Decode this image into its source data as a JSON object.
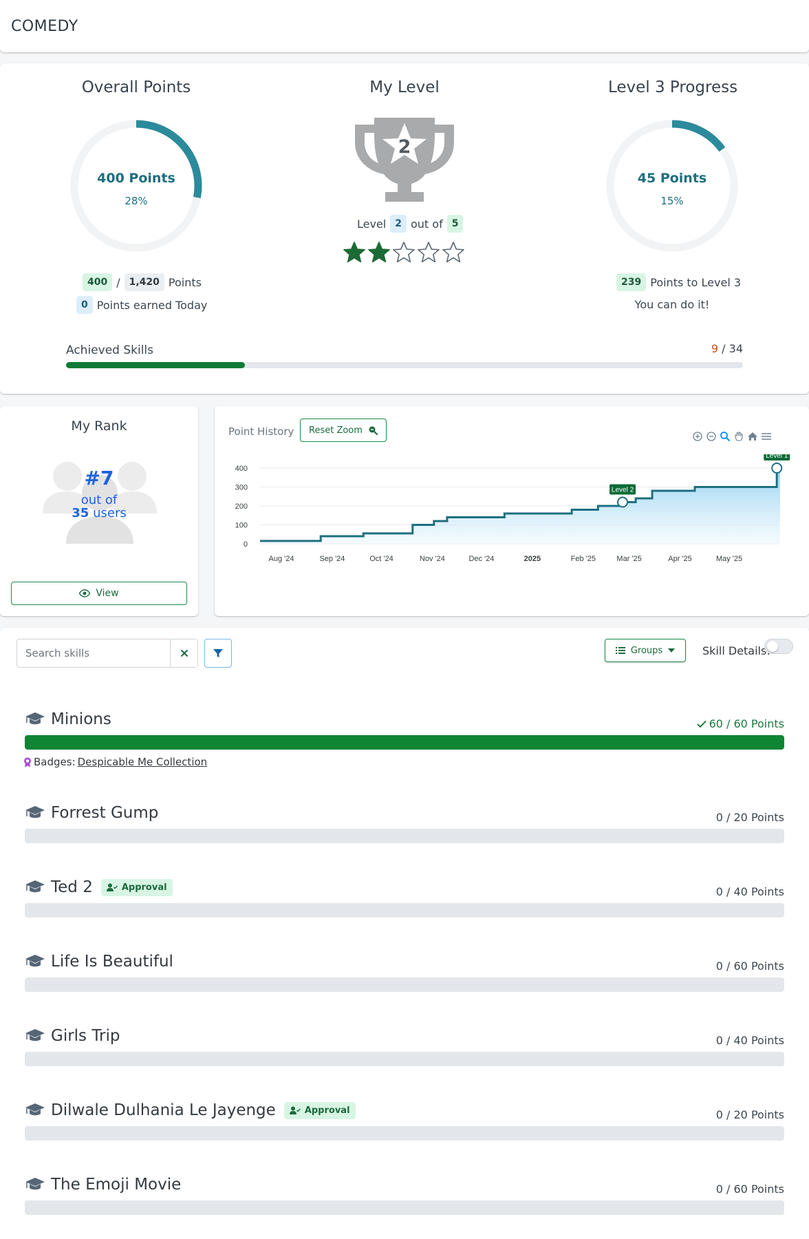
{
  "header": {
    "title": "COMEDY"
  },
  "overview": {
    "overall": {
      "title": "Overall Points",
      "points_label": "400 Points",
      "percent_label": "28%",
      "fraction": 0.28,
      "earned": "400",
      "total": "1,420",
      "points_word": "Points",
      "today": "0",
      "today_label": "Points earned Today",
      "separator": "/"
    },
    "level": {
      "title": "My Level",
      "current": "2",
      "level_word": "Level",
      "out_of_word": "out of",
      "max": "5",
      "stars_filled": 2,
      "stars_total": 5
    },
    "progress": {
      "title": "Level 3 Progress",
      "points_label": "45 Points",
      "percent_label": "15%",
      "fraction": 0.15,
      "remaining": "239",
      "remaining_label": "Points to Level 3",
      "encouragement": "You can do it!"
    },
    "achieved": {
      "label": "Achieved Skills",
      "done": "9",
      "total": "34",
      "separator": "/",
      "fraction": 0.2647
    }
  },
  "rank": {
    "title": "My Rank",
    "position": "#7",
    "out_of": "out of",
    "count": "35",
    "users_word": "users",
    "view_label": "View"
  },
  "history": {
    "title": "Point History",
    "reset_label": "Reset Zoom"
  },
  "chart_data": {
    "type": "area",
    "title": "Point History",
    "x_ticks": [
      "Aug '24",
      "Sep '24",
      "Oct '24",
      "Nov '24",
      "Dec '24",
      "2025",
      "Feb '25",
      "Mar '25",
      "Apr '25",
      "May '25"
    ],
    "y_ticks": [
      "0",
      "100",
      "200",
      "300",
      "400"
    ],
    "ylim": [
      0,
      400
    ],
    "series": [
      {
        "points": [
          [
            "2024-07-19",
            15
          ],
          [
            "2024-08-25",
            15
          ],
          [
            "2024-08-25",
            40
          ],
          [
            "2024-09-20",
            40
          ],
          [
            "2024-09-20",
            55
          ],
          [
            "2024-10-20",
            55
          ],
          [
            "2024-10-20",
            100
          ],
          [
            "2024-11-02",
            100
          ],
          [
            "2024-11-02",
            120
          ],
          [
            "2024-11-10",
            120
          ],
          [
            "2024-11-10",
            140
          ],
          [
            "2024-12-15",
            140
          ],
          [
            "2024-12-15",
            160
          ],
          [
            "2025-01-25",
            160
          ],
          [
            "2025-01-25",
            180
          ],
          [
            "2025-02-10",
            180
          ],
          [
            "2025-02-10",
            200
          ],
          [
            "2025-02-25",
            200
          ],
          [
            "2025-02-25",
            220
          ],
          [
            "2025-03-05",
            220
          ],
          [
            "2025-03-05",
            240
          ],
          [
            "2025-03-15",
            240
          ],
          [
            "2025-03-15",
            280
          ],
          [
            "2025-04-10",
            280
          ],
          [
            "2025-04-10",
            300
          ],
          [
            "2025-05-30",
            300
          ],
          [
            "2025-05-30",
            400
          ],
          [
            "2025-06-01",
            400
          ]
        ]
      }
    ],
    "annotations": [
      {
        "label": "Level 2",
        "x": "2025-02-25",
        "y": 220
      },
      {
        "label": "Level 1",
        "x": "2025-05-30",
        "y": 400
      }
    ],
    "colors": {
      "line": "#1e6f80",
      "fill_top": "#8fd0f2",
      "fill_bottom": "#eef8fd",
      "label_bg": "#0b6b36"
    }
  },
  "controls": {
    "search_placeholder": "Search skills",
    "groups_label": "Groups",
    "details_label": "Skill Details:"
  },
  "skills": [
    {
      "name": "Minions",
      "points": "60 / 60 Points",
      "fraction": 1.0,
      "done": true,
      "approval": "",
      "badges_label": "Badges:",
      "badge": "Despicable Me Collection"
    },
    {
      "name": "Forrest Gump",
      "points": "0 / 20 Points",
      "fraction": 0,
      "done": false,
      "approval": ""
    },
    {
      "name": "Ted 2",
      "points": "0 / 40 Points",
      "fraction": 0,
      "done": false,
      "approval": "Approval"
    },
    {
      "name": "Life Is Beautiful",
      "points": "0 / 60 Points",
      "fraction": 0,
      "done": false,
      "approval": ""
    },
    {
      "name": "Girls Trip",
      "points": "0 / 40 Points",
      "fraction": 0,
      "done": false,
      "approval": ""
    },
    {
      "name": "Dilwale Dulhania Le Jayenge",
      "points": "0 / 20 Points",
      "fraction": 0,
      "done": false,
      "approval": "Approval"
    },
    {
      "name": "The Emoji Movie",
      "points": "0 / 60 Points",
      "fraction": 0,
      "done": false,
      "approval": ""
    }
  ],
  "colors": {
    "accent": "#1e6f80",
    "success": "#0f7a34",
    "rank": "#1d63e0",
    "trophy": "#a9aaab"
  }
}
